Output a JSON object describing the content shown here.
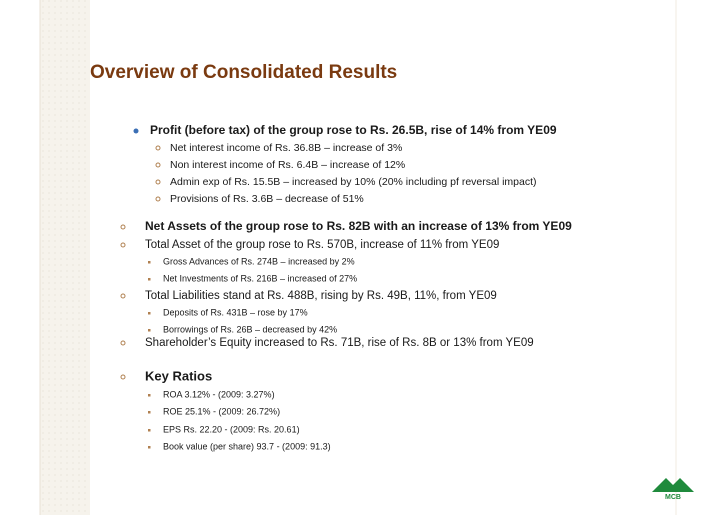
{
  "title": "Overview of Consolidated Results",
  "sections": [
    {
      "heading": "Profit (before tax) of the group rose to Rs. 26.5B, rise of 14% from YE09",
      "items": [
        "Net interest income of Rs. 36.8B – increase of 3%",
        "Non interest income of Rs. 6.4B – increase of 12%",
        "Admin exp of Rs. 15.5B – increased by 10% (20% including pf reversal impact)",
        "Provisions of Rs. 3.6B – decrease of 51%"
      ]
    },
    {
      "heading": "Net Assets of the group rose to Rs. 82B with an increase of 13% from YE09"
    },
    {
      "heading": "Total Asset of the group rose to Rs. 570B, increase of 11% from YE09",
      "items": [
        "Gross Advances of Rs. 274B – increased by 2%",
        "Net Investments of Rs. 216B – increased of 27%"
      ]
    },
    {
      "heading": "Total Liabilities stand at Rs. 488B, rising by Rs. 49B, 11%, from YE09",
      "items": [
        "Deposits of Rs. 431B – rose by 17%",
        "Borrowings of Rs. 26B – decreased by 42%"
      ]
    },
    {
      "heading": "Shareholder’s Equity increased to Rs. 71B, rise of Rs. 8B or 13% from YE09"
    },
    {
      "heading": "Key Ratios",
      "items": [
        "ROA 3.12% - (2009: 3.27%)",
        "ROE 25.1% - (2009: 26.72%)",
        "EPS Rs. 22.20 - (2009: Rs. 20.61)",
        "Book value (per share) 93.7 - (2009: 91.3)"
      ]
    }
  ],
  "logo": "MCB"
}
